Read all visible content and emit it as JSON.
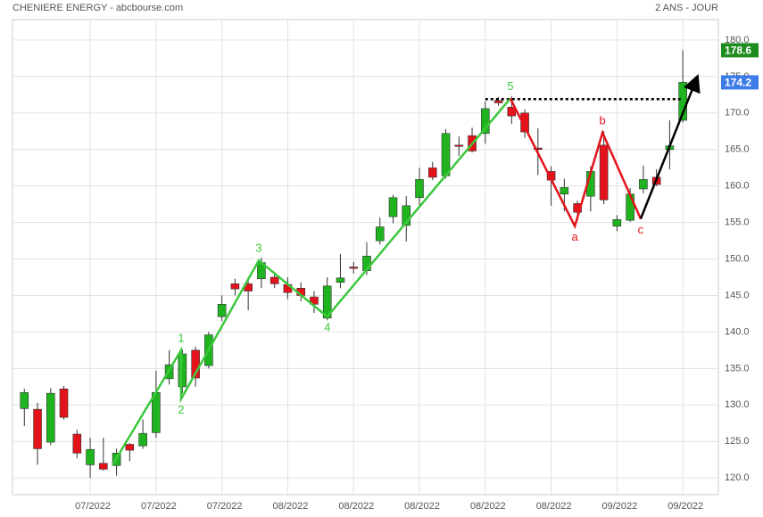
{
  "chart_data": {
    "type": "candlestick",
    "title": "CHENIERE ENERGY - abcbourse.com",
    "subtitle": "2 ANS - JOUR",
    "categories": [
      null,
      null,
      null,
      null,
      null,
      "07/2022",
      null,
      null,
      null,
      null,
      "07/2022",
      null,
      null,
      null,
      null,
      "07/2022",
      null,
      null,
      null,
      null,
      "08/2022",
      null,
      null,
      null,
      null,
      "08/2022",
      null,
      null,
      null,
      null,
      "08/2022",
      null,
      null,
      null,
      null,
      "08/2022",
      null,
      null,
      null,
      null,
      "08/2022",
      null,
      null,
      null,
      null,
      "09/2022",
      null,
      null,
      null,
      null,
      "09/2022"
    ],
    "open": [
      129.5,
      129.4,
      124.9,
      132.2,
      126.0,
      121.8,
      122.0,
      121.7,
      124.6,
      124.4,
      126.2,
      133.6,
      132.5,
      137.5,
      135.4,
      142.1,
      146.6,
      146.6,
      147.3,
      147.5,
      146.5,
      146.0,
      144.8,
      141.9,
      146.8,
      148.9,
      148.4,
      152.5,
      155.8,
      154.6,
      158.4,
      162.5,
      161.4,
      165.6,
      166.9,
      167.2,
      171.7,
      170.8,
      170.0,
      165.2,
      162.0,
      158.9,
      157.6,
      158.6,
      165.6,
      154.5,
      155.3,
      159.6,
      161.2,
      165.0,
      169.0
    ],
    "high": [
      132.2,
      130.3,
      132.3,
      132.6,
      126.6,
      125.5,
      125.5,
      124.0,
      124.8,
      128.0,
      134.7,
      137.5,
      137.6,
      138.0,
      140.0,
      145.0,
      147.3,
      147.5,
      150.2,
      148.2,
      147.5,
      146.8,
      145.6,
      147.5,
      150.7,
      149.6,
      152.3,
      155.7,
      158.8,
      158.6,
      162.5,
      163.3,
      167.8,
      166.8,
      168.0,
      171.6,
      172.2,
      172.3,
      170.5,
      167.9,
      162.7,
      161.0,
      158.0,
      162.7,
      167.5,
      156.0,
      159.7,
      162.8,
      162.3,
      169.0,
      178.6
    ],
    "low": [
      127.1,
      121.8,
      124.5,
      128.0,
      122.7,
      120.0,
      121.0,
      120.3,
      122.3,
      124.0,
      125.5,
      132.8,
      131.6,
      132.5,
      135.0,
      141.5,
      145.0,
      143.0,
      146.0,
      146.0,
      144.5,
      144.2,
      142.6,
      141.6,
      146.0,
      148.0,
      147.8,
      152.0,
      154.9,
      152.4,
      157.2,
      160.8,
      161.0,
      164.1,
      164.6,
      165.8,
      171.0,
      168.5,
      166.6,
      161.5,
      157.3,
      156.5,
      155.2,
      156.5,
      157.5,
      153.8,
      155.1,
      159.0,
      160.0,
      162.3,
      168.7
    ],
    "close": [
      131.7,
      124.0,
      131.6,
      128.3,
      123.4,
      123.9,
      121.2,
      123.4,
      123.8,
      126.1,
      131.7,
      135.5,
      137.0,
      133.7,
      139.6,
      143.8,
      145.9,
      145.6,
      149.5,
      146.6,
      145.4,
      145.0,
      143.8,
      146.3,
      147.4,
      148.8,
      150.4,
      154.4,
      158.4,
      157.3,
      160.9,
      161.2,
      167.2,
      165.5,
      164.8,
      170.6,
      171.4,
      169.6,
      167.4,
      165.0,
      160.8,
      159.8,
      156.4,
      162.0,
      158.1,
      155.4,
      158.9,
      160.9,
      160.2,
      165.5,
      174.2
    ],
    "up_color": "#1fb41f",
    "down_color": "#e3131b",
    "xlim": [
      -0.9,
      52.7
    ],
    "ylim": [
      117.7,
      182.8
    ],
    "yticks": [
      {
        "value": 120,
        "label": "120.0"
      },
      {
        "value": 125,
        "label": "125.0"
      },
      {
        "value": 130,
        "label": "130.0"
      },
      {
        "value": 135,
        "label": "135.0"
      },
      {
        "value": 140,
        "label": "140.0"
      },
      {
        "value": 145,
        "label": "145.0"
      },
      {
        "value": 150,
        "label": "150.0"
      },
      {
        "value": 155,
        "label": "155.0"
      },
      {
        "value": 160,
        "label": "160.0"
      },
      {
        "value": 165,
        "label": "165.0"
      },
      {
        "value": 170,
        "label": "170.0"
      },
      {
        "value": 175,
        "label": "175.0"
      },
      {
        "value": 180,
        "label": "180.0"
      }
    ],
    "grid": true,
    "waves": [
      {
        "color": "#3cc83c",
        "x": [
          6.7,
          11.9,
          11.9,
          17.8,
          23.0,
          36.9
        ],
        "values": [
          121.8,
          137.5,
          130.8,
          149.8,
          142.1,
          172.0
        ],
        "labels": [
          null,
          "1",
          "2",
          "3",
          "4",
          "5"
        ]
      },
      {
        "color": "#e3131b",
        "x": [
          36.9,
          41.8,
          43.9,
          46.8
        ],
        "values": [
          172.0,
          154.5,
          167.3,
          155.5
        ],
        "labels": [
          null,
          "a",
          "b",
          "c"
        ]
      },
      {
        "color": "#000000",
        "x": [
          46.8,
          51.0
        ],
        "values": [
          155.5,
          174.5
        ],
        "labels": [
          null,
          null
        ],
        "arrow": true
      }
    ],
    "level": {
      "value": 171.9,
      "x": [
        35.0,
        50.0
      ],
      "color": "#000000"
    },
    "last_markers": [
      {
        "value": 178.6,
        "color": "#1e8c1e"
      },
      {
        "value": 174.2,
        "color": "#3d7be8"
      }
    ]
  }
}
